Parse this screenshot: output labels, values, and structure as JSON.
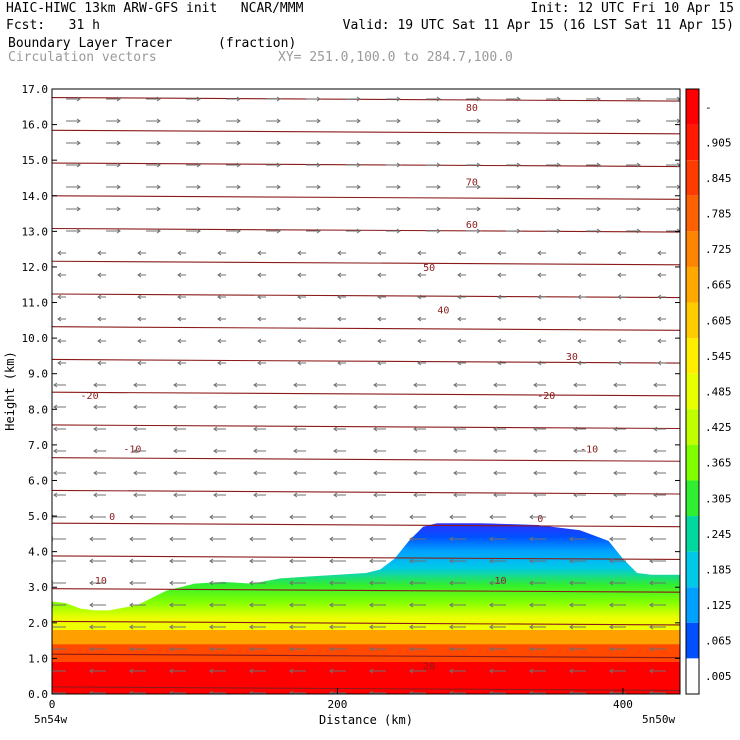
{
  "header": {
    "left_line1": "HAIC-HIWC 13km ARW-GFS init   NCAR/MMM",
    "left_line2": "Fcst:   31 h",
    "right_line1": "Init: 12 UTC Fri 10 Apr 15",
    "right_line2": "Valid: 19 UTC Sat 11 Apr 15 (16 LST Sat 11 Apr 15)",
    "field1_name": "Boundary Layer Tracer",
    "field1_units": "(fraction)",
    "field2_name": "Circulation vectors",
    "xy_range": "XY= 251.0,100.0 to 284.7,100.0"
  },
  "chart_data": {
    "type": "heatmap",
    "title": "Boundary Layer Tracer",
    "xlabel": "Distance (km)",
    "ylabel": "Height (km)",
    "xlim": [
      0,
      440
    ],
    "ylim": [
      0,
      17
    ],
    "x_ticks": [
      "0",
      "200",
      "400"
    ],
    "x_tick_values": [
      0,
      200,
      400
    ],
    "x_end_labels": [
      "5n54w",
      "5n50w"
    ],
    "y_ticks": [
      "0.0",
      "1.0",
      "2.0",
      "3.0",
      "4.0",
      "5.0",
      "6.0",
      "7.0",
      "8.0",
      "9.0",
      "10.0",
      "11.0",
      "12.0",
      "13.0",
      "14.0",
      "15.0",
      "16.0",
      "17.0"
    ],
    "colorbar": {
      "labels": [
        "-",
        ".905",
        ".845",
        ".785",
        ".725",
        ".665",
        ".605",
        ".545",
        ".485",
        ".425",
        ".365",
        ".305",
        ".245",
        ".185",
        ".125",
        ".065",
        ".005"
      ],
      "colors": [
        "#ff0000",
        "#ff1a00",
        "#ff3c00",
        "#ff6000",
        "#ff8400",
        "#ffa800",
        "#ffcc00",
        "#ffee00",
        "#e8ff00",
        "#c0ff00",
        "#80ff00",
        "#30ee30",
        "#00d8a0",
        "#00c8e8",
        "#00a0ff",
        "#0050ff",
        "#ffffff"
      ]
    },
    "tracer_boundary_km": {
      "x": [
        0,
        10,
        20,
        30,
        40,
        60,
        80,
        100,
        120,
        140,
        160,
        180,
        200,
        220,
        230,
        240,
        250,
        260,
        270,
        300,
        340,
        370,
        390,
        400,
        410,
        420,
        440
      ],
      "top": [
        2.6,
        2.55,
        2.4,
        2.35,
        2.35,
        2.5,
        2.9,
        3.1,
        3.15,
        3.1,
        3.25,
        3.3,
        3.35,
        3.4,
        3.5,
        3.8,
        4.3,
        4.7,
        4.8,
        4.8,
        4.75,
        4.6,
        4.3,
        3.8,
        3.4,
        3.35,
        3.35
      ]
    },
    "contour_labels": [
      "80",
      "70",
      "60",
      "50",
      "40",
      "30",
      "-20",
      "-20",
      "-10",
      "-10",
      "0",
      "0",
      "10",
      "10",
      "20"
    ]
  }
}
